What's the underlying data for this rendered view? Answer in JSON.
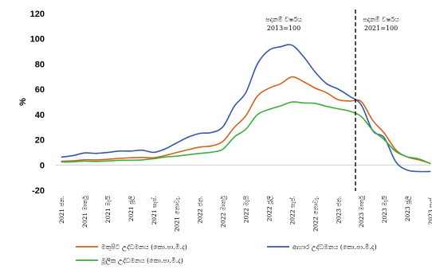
{
  "chart_data": {
    "type": "line",
    "ylabel": "%",
    "ylim": [
      -20,
      120
    ],
    "yticks": [
      "-20",
      "0",
      "20",
      "40",
      "60",
      "80",
      "100",
      "120"
    ],
    "x_tick_labels": [
      "2021 ජන.",
      "2021 මාර්තු",
      "2021 මැයි",
      "2021 ජූලි",
      "2021 සැප්.",
      "2021 නොවැ.",
      "2022 ජන.",
      "2022 මාර්තු",
      "2022 මැයි",
      "2022 ජූලි",
      "2022 සැප්.",
      "2022 නොවැ.",
      "2023 ජන.",
      "2023 මාර්තු",
      "2023 මැයි",
      "2023 ජූලි",
      "2023 සැප්."
    ],
    "x_count": 33,
    "base_change_index": 25.5,
    "annotations": [
      {
        "line1": "පදනම් වර්ෂය",
        "line2": "2013=100"
      },
      {
        "line1": "පදනම් වර්ෂය",
        "line2": "2021=100"
      }
    ],
    "series": [
      {
        "name": "මතුපිට උද්ධමනය (කො.පා.මි.ද)",
        "color": "#d4601c",
        "values": [
          3.0,
          3.3,
          4.1,
          4.0,
          4.5,
          5.2,
          5.7,
          6.0,
          5.7,
          7.5,
          9.9,
          12.1,
          14.2,
          15.1,
          18.7,
          29.8,
          39.1,
          54.6,
          60.8,
          64.3,
          69.8,
          66.0,
          61.0,
          57.2,
          51.7,
          50.6,
          50.3,
          35.3,
          25.2,
          12.0,
          6.3,
          4.0,
          1.3
        ]
      },
      {
        "name": "ආහාර උද්ධමනය (කො.පා.මි.ද)",
        "color": "#3457a8",
        "values": [
          6.2,
          7.4,
          9.5,
          9.2,
          9.9,
          11.0,
          11.0,
          11.7,
          10.0,
          12.7,
          17.5,
          22.1,
          25.0,
          25.7,
          30.2,
          46.6,
          57.4,
          80.1,
          90.9,
          93.7,
          94.9,
          85.8,
          73.7,
          64.4,
          60.1,
          54.4,
          47.6,
          27.1,
          21.5,
          2.5,
          -4.1,
          -5.2,
          -5.2
        ]
      },
      {
        "name": "මූලික උද්ධමනය (කො.පා.මි.ද)",
        "color": "#3cae3c",
        "values": [
          2.3,
          2.5,
          3.0,
          2.8,
          3.2,
          3.7,
          3.8,
          4.0,
          5.0,
          6.3,
          7.0,
          8.1,
          9.2,
          10.1,
          12.5,
          22.2,
          28.4,
          39.9,
          44.0,
          46.8,
          49.9,
          49.2,
          48.8,
          46.4,
          44.5,
          42.6,
          38.4,
          27.5,
          20.0,
          10.7,
          6.5,
          4.8,
          1.0
        ]
      }
    ]
  }
}
